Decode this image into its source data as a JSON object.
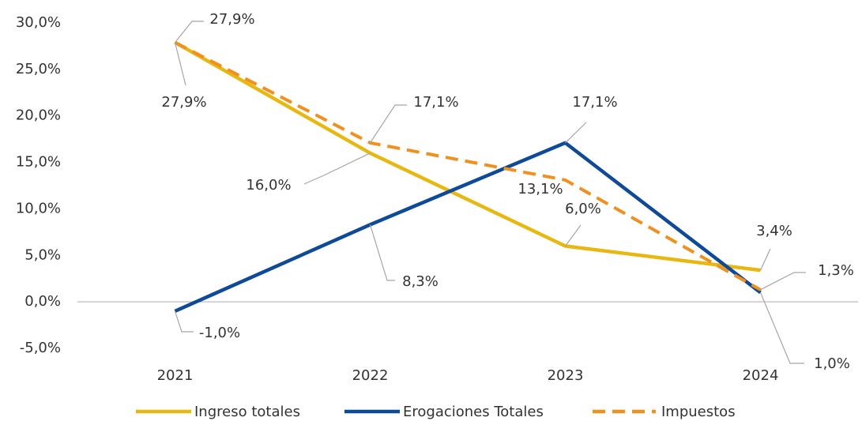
{
  "chart_data": {
    "type": "line",
    "categories": [
      "2021",
      "2022",
      "2023",
      "2024"
    ],
    "series": [
      {
        "name": "Ingreso totales",
        "color": "#E8B812",
        "dashed": false,
        "values": [
          27.9,
          16.0,
          6.0,
          3.4
        ],
        "value_labels": [
          "27,9%",
          "16,0%",
          "6,0%",
          "3,4%"
        ]
      },
      {
        "name": "Erogaciones Totales",
        "color": "#0E4A96",
        "dashed": false,
        "values": [
          -1.0,
          8.3,
          17.1,
          1.0
        ],
        "value_labels": [
          "-1,0%",
          "8,3%",
          "17,1%",
          "1,0%"
        ]
      },
      {
        "name": "Impuestos",
        "color": "#F0901E",
        "dashed": true,
        "values": [
          27.9,
          17.1,
          13.1,
          1.3
        ],
        "value_labels": [
          "27,9%",
          "17,1%",
          "13,1%",
          "1,3%"
        ]
      }
    ],
    "ylim": [
      -5,
      30
    ],
    "yticks": [
      {
        "value": 30,
        "label": "30,0%"
      },
      {
        "value": 25,
        "label": "25,0%"
      },
      {
        "value": 20,
        "label": "20,0%"
      },
      {
        "value": 15,
        "label": "15,0%"
      },
      {
        "value": 10,
        "label": "10,0%"
      },
      {
        "value": 5,
        "label": "5,0%"
      },
      {
        "value": 0,
        "label": "0,0%"
      },
      {
        "value": -5,
        "label": "-5,0%"
      }
    ],
    "grid": false,
    "legend": "bottom"
  }
}
